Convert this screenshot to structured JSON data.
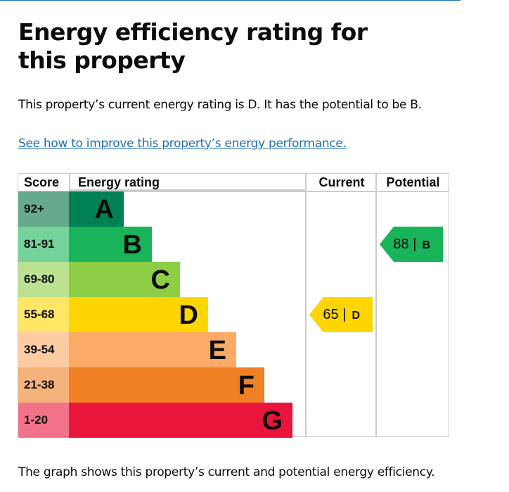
{
  "title": "Energy efficiency rating for this property",
  "summary": "This property’s current energy rating is D. It has the potential to be B.",
  "link": "See how to improve this property’s energy performance.",
  "table": {
    "headers": {
      "score": "Score",
      "rating": "Energy rating",
      "current": "Current",
      "potential": "Potential"
    },
    "bands": [
      {
        "score": "92+",
        "letter": "A",
        "color": "#008054",
        "light": "#66a98d"
      },
      {
        "score": "81-91",
        "letter": "B",
        "color": "#19b459",
        "light": "#75d29b"
      },
      {
        "score": "69-80",
        "letter": "C",
        "color": "#8dce46",
        "light": "#bbe290"
      },
      {
        "score": "55-68",
        "letter": "D",
        "color": "#ffd500",
        "light": "#ffe666"
      },
      {
        "score": "39-54",
        "letter": "E",
        "color": "#fcaa65",
        "light": "#fdcca3"
      },
      {
        "score": "21-38",
        "letter": "F",
        "color": "#ef8023",
        "light": "#f5b37b"
      },
      {
        "score": "1-20",
        "letter": "G",
        "color": "#e9153b",
        "light": "#f27389"
      }
    ],
    "current": {
      "value": "65",
      "sep": "|",
      "letter": "D",
      "band_index": 3,
      "color": "#ffd500"
    },
    "potential": {
      "value": "88",
      "sep": "|",
      "letter": "B",
      "band_index": 1,
      "color": "#19b459"
    }
  },
  "footer": "The graph shows this property’s current and potential energy efficiency."
}
